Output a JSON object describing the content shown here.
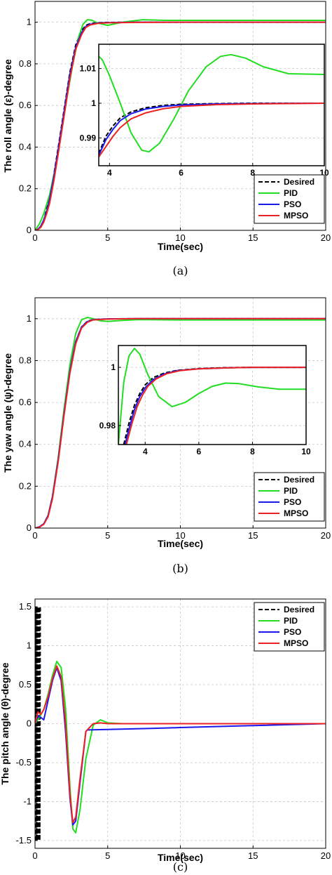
{
  "chart_data": [
    {
      "type": "line",
      "ylabel": "The roll angle (ε)-degree",
      "xlabel": "Time(sec)",
      "caption": "(a)",
      "xlim": [
        0,
        20
      ],
      "ylim": [
        0,
        1.1
      ],
      "xticks": [
        0,
        5,
        10,
        15,
        20
      ],
      "yticks": [
        0,
        0.2,
        0.4,
        0.6,
        0.8,
        1
      ],
      "grid": true,
      "legend": "bottom-right",
      "series": [
        {
          "name": "Desired",
          "color": "#000000",
          "dash": true,
          "x": [
            0,
            0.2,
            0.4,
            0.6,
            0.8,
            1.0,
            1.3,
            1.6,
            2.0,
            2.4,
            2.8,
            3.2,
            3.5,
            3.8,
            4.2,
            5,
            7,
            10,
            20
          ],
          "y": [
            0,
            0.005,
            0.02,
            0.05,
            0.1,
            0.16,
            0.27,
            0.4,
            0.58,
            0.76,
            0.89,
            0.96,
            0.985,
            0.993,
            0.997,
            0.999,
            1.0,
            1.0,
            1.0
          ]
        },
        {
          "name": "PID",
          "color": "#22dd22",
          "dash": false,
          "x": [
            0,
            0.3,
            0.6,
            1.0,
            1.4,
            1.8,
            2.2,
            2.6,
            3.0,
            3.3,
            3.6,
            3.9,
            4.3,
            5.0,
            6.0,
            7.4,
            9,
            10,
            12,
            20
          ],
          "y": [
            0,
            0.03,
            0.08,
            0.17,
            0.3,
            0.46,
            0.64,
            0.8,
            0.93,
            0.99,
            1.012,
            1.01,
            0.996,
            0.985,
            1.0,
            1.012,
            1.009,
            1.009,
            1.009,
            1.009
          ]
        },
        {
          "name": "PSO",
          "color": "#1a1aee",
          "dash": false,
          "x": [
            0,
            0.2,
            0.4,
            0.6,
            0.8,
            1.0,
            1.3,
            1.6,
            2.0,
            2.4,
            2.8,
            3.2,
            3.5,
            3.8,
            4.3,
            5,
            7,
            10,
            20
          ],
          "y": [
            0,
            0.005,
            0.02,
            0.05,
            0.09,
            0.15,
            0.26,
            0.39,
            0.57,
            0.75,
            0.88,
            0.95,
            0.98,
            0.99,
            0.996,
            0.998,
            1.0,
            1.0,
            1.0
          ]
        },
        {
          "name": "MPSO",
          "color": "#ee2222",
          "dash": false,
          "x": [
            0,
            0.2,
            0.4,
            0.6,
            0.8,
            1.0,
            1.3,
            1.6,
            2.0,
            2.4,
            2.8,
            3.2,
            3.5,
            3.8,
            4.3,
            5,
            7,
            10,
            20
          ],
          "y": [
            0,
            0.003,
            0.015,
            0.04,
            0.08,
            0.13,
            0.24,
            0.37,
            0.55,
            0.73,
            0.87,
            0.94,
            0.975,
            0.987,
            0.994,
            0.997,
            0.999,
            1.0,
            1.0
          ]
        }
      ],
      "inset": {
        "xlim": [
          3.7,
          10
        ],
        "ylim": [
          0.982,
          1.017
        ],
        "xticks": [
          4,
          6,
          8,
          10
        ],
        "yticks": [
          0.99,
          1,
          1.01
        ],
        "series": [
          {
            "name": "Desired",
            "x": [
              3.7,
              3.9,
              4.1,
              4.3,
              4.6,
              5.0,
              5.5,
              6,
              7,
              8,
              10
            ],
            "y": [
              0.9855,
              0.9905,
              0.9935,
              0.9958,
              0.9975,
              0.9987,
              0.9994,
              0.9997,
              0.9999,
              1.0,
              1.0
            ]
          },
          {
            "name": "PID",
            "x": [
              3.7,
              3.8,
              4.0,
              4.3,
              4.6,
              4.9,
              5.1,
              5.4,
              5.8,
              6.2,
              6.7,
              7.1,
              7.4,
              7.8,
              8.3,
              9,
              10
            ],
            "y": [
              1.0135,
              1.0125,
              1.008,
              1.0,
              0.9915,
              0.9865,
              0.986,
              0.9885,
              0.9955,
              1.0035,
              1.0105,
              1.0135,
              1.014,
              1.013,
              1.0105,
              1.0085,
              1.0083
            ]
          },
          {
            "name": "PSO",
            "x": [
              3.7,
              3.9,
              4.1,
              4.3,
              4.6,
              5.0,
              5.5,
              6,
              7,
              8,
              10
            ],
            "y": [
              0.985,
              0.9895,
              0.9925,
              0.995,
              0.997,
              0.9983,
              0.9991,
              0.9995,
              0.9998,
              0.9999,
              1.0
            ]
          },
          {
            "name": "MPSO",
            "x": [
              3.7,
              3.9,
              4.1,
              4.3,
              4.6,
              5.0,
              5.5,
              6,
              7,
              8,
              10
            ],
            "y": [
              0.9845,
              0.9875,
              0.9905,
              0.993,
              0.9955,
              0.9972,
              0.9984,
              0.9991,
              0.9996,
              0.9998,
              1.0
            ]
          }
        ]
      }
    },
    {
      "type": "line",
      "ylabel": "The yaw angle (ψ)-degree",
      "xlabel": "Time(sec)",
      "caption": "(b)",
      "xlim": [
        0,
        20
      ],
      "ylim": [
        0,
        1.1
      ],
      "xticks": [
        0,
        5,
        10,
        15,
        20
      ],
      "yticks": [
        0,
        0.2,
        0.4,
        0.6,
        0.8,
        1
      ],
      "grid": true,
      "legend": "bottom-right",
      "series": [
        {
          "name": "Desired",
          "color": "#000000",
          "dash": true,
          "x": [
            0,
            0.3,
            0.6,
            0.9,
            1.2,
            1.6,
            2.0,
            2.4,
            2.8,
            3.2,
            3.6,
            4.0,
            5,
            7,
            10,
            20
          ],
          "y": [
            0,
            0.005,
            0.02,
            0.06,
            0.15,
            0.33,
            0.55,
            0.75,
            0.89,
            0.96,
            0.988,
            0.996,
            0.999,
            1.0,
            1.0,
            1.0
          ]
        },
        {
          "name": "PID",
          "color": "#22dd22",
          "dash": false,
          "x": [
            0,
            0.3,
            0.6,
            0.9,
            1.2,
            1.6,
            2.0,
            2.4,
            2.8,
            3.2,
            3.6,
            4.0,
            4.5,
            5.0,
            6.0,
            7.0,
            8,
            10,
            20
          ],
          "y": [
            0,
            0.005,
            0.02,
            0.06,
            0.15,
            0.34,
            0.57,
            0.78,
            0.93,
            0.995,
            1.006,
            1.0,
            0.99,
            0.987,
            0.992,
            0.995,
            0.995,
            0.994,
            0.994
          ]
        },
        {
          "name": "PSO",
          "color": "#1a1aee",
          "dash": false,
          "x": [
            0,
            0.3,
            0.6,
            0.9,
            1.2,
            1.6,
            2.0,
            2.4,
            2.8,
            3.2,
            3.6,
            4.0,
            5,
            7,
            10,
            20
          ],
          "y": [
            0,
            0.006,
            0.02,
            0.06,
            0.15,
            0.33,
            0.55,
            0.75,
            0.89,
            0.96,
            0.986,
            0.995,
            0.999,
            1.0,
            1.0,
            1.0
          ]
        },
        {
          "name": "MPSO",
          "color": "#ee2222",
          "dash": false,
          "x": [
            0,
            0.3,
            0.6,
            0.9,
            1.2,
            1.6,
            2.0,
            2.4,
            2.8,
            3.2,
            3.6,
            4.0,
            5,
            7,
            10,
            20
          ],
          "y": [
            0,
            0.004,
            0.018,
            0.055,
            0.14,
            0.32,
            0.54,
            0.74,
            0.88,
            0.955,
            0.983,
            0.994,
            0.998,
            1.0,
            1.0,
            1.0
          ]
        }
      ],
      "inset": {
        "xlim": [
          3,
          10
        ],
        "ylim": [
          0.9735,
          1.0075
        ],
        "xticks": [
          4,
          6,
          8,
          10
        ],
        "yticks": [
          0.98,
          1
        ],
        "series": [
          {
            "name": "Desired",
            "x": [
              3.2,
              3.4,
              3.6,
              3.8,
              4.0,
              4.3,
              4.7,
              5.2,
              6,
              7,
              8,
              10
            ],
            "y": [
              0.9735,
              0.981,
              0.987,
              0.991,
              0.994,
              0.9965,
              0.998,
              0.999,
              0.9996,
              0.9999,
              1.0,
              1.0
            ]
          },
          {
            "name": "PID",
            "x": [
              3.0,
              3.2,
              3.4,
              3.6,
              3.8,
              4.1,
              4.5,
              5.0,
              5.5,
              6.0,
              6.5,
              7.0,
              7.5,
              8.2,
              9,
              10
            ],
            "y": [
              0.9735,
              0.995,
              1.004,
              1.0065,
              1.0045,
              0.9975,
              0.99,
              0.9865,
              0.988,
              0.991,
              0.9935,
              0.9946,
              0.9944,
              0.9933,
              0.9925,
              0.9925
            ]
          },
          {
            "name": "PSO",
            "x": [
              3.25,
              3.4,
              3.6,
              3.8,
              4.0,
              4.3,
              4.7,
              5.2,
              6,
              7,
              8,
              10
            ],
            "y": [
              0.9735,
              0.979,
              0.9855,
              0.99,
              0.993,
              0.9958,
              0.9977,
              0.9989,
              0.9995,
              0.9998,
              1.0,
              1.0
            ]
          },
          {
            "name": "MPSO",
            "x": [
              3.3,
              3.5,
              3.7,
              3.9,
              4.1,
              4.4,
              4.8,
              5.3,
              6,
              7,
              8,
              10
            ],
            "y": [
              0.9735,
              0.9805,
              0.9865,
              0.9905,
              0.9935,
              0.996,
              0.9978,
              0.9989,
              0.9995,
              0.9998,
              1.0,
              1.0
            ]
          }
        ]
      }
    },
    {
      "type": "line",
      "ylabel": "The pitch angle (θ)-degree",
      "xlabel": "Time(sec)",
      "caption": "(c)",
      "xlim": [
        0,
        20
      ],
      "ylim": [
        -1.6,
        1.6
      ],
      "xticks": [
        0,
        5,
        10,
        15,
        20
      ],
      "yticks": [
        -1.5,
        -1,
        -0.5,
        0,
        0.5,
        1,
        1.5
      ],
      "grid": true,
      "legend": "top-right",
      "series": [
        {
          "name": "Desired",
          "color": "#000000",
          "dash": true,
          "x": [
            0.03,
            0.06,
            0.09,
            0.12,
            0.15,
            0.18,
            0.21,
            0.24,
            0.27,
            0.3,
            0.33,
            0.36
          ],
          "y": [
            -1.5,
            1.5,
            -1.5,
            1.5,
            -1.5,
            1.5,
            -1.5,
            1.5,
            -1.5,
            1.5,
            -1.5,
            1.5
          ]
        },
        {
          "name": "PID",
          "color": "#22dd22",
          "dash": false,
          "x": [
            0,
            0.3,
            0.6,
            0.9,
            1.2,
            1.5,
            1.8,
            2.1,
            2.4,
            2.6,
            2.8,
            3.1,
            3.5,
            4.0,
            4.5,
            5.0,
            6,
            8,
            10,
            14,
            20
          ],
          "y": [
            0,
            0.08,
            0.18,
            0.38,
            0.62,
            0.8,
            0.72,
            0.2,
            -0.8,
            -1.35,
            -1.4,
            -1.1,
            -0.45,
            -0.02,
            0.05,
            0.01,
            0.0,
            0.0,
            0.0,
            0.0,
            0.0
          ]
        },
        {
          "name": "PSO",
          "color": "#1a1aee",
          "dash": false,
          "x": [
            0,
            0.2,
            0.4,
            0.6,
            0.9,
            1.2,
            1.5,
            1.8,
            2.1,
            2.4,
            2.6,
            2.8,
            3.1,
            3.5,
            3.6,
            5,
            8,
            10,
            14,
            20
          ],
          "y": [
            0,
            0.1,
            0.08,
            0.05,
            0.3,
            0.55,
            0.72,
            0.55,
            -0.1,
            -0.95,
            -1.3,
            -1.25,
            -0.75,
            -0.1,
            -0.08,
            -0.075,
            -0.06,
            -0.05,
            -0.03,
            0.0
          ]
        },
        {
          "name": "MPSO",
          "color": "#ee2222",
          "dash": false,
          "x": [
            0,
            0.2,
            0.4,
            0.6,
            0.9,
            1.2,
            1.5,
            1.8,
            2.1,
            2.4,
            2.6,
            2.8,
            3.1,
            3.5,
            4.0,
            4.5,
            5,
            7,
            10,
            14,
            20
          ],
          "y": [
            0,
            0.15,
            0.12,
            0.18,
            0.35,
            0.58,
            0.74,
            0.6,
            0.0,
            -0.9,
            -1.27,
            -1.2,
            -0.7,
            -0.1,
            0.0,
            0.01,
            0.0,
            0.0,
            0.0,
            0.0,
            0.0
          ]
        }
      ]
    }
  ]
}
